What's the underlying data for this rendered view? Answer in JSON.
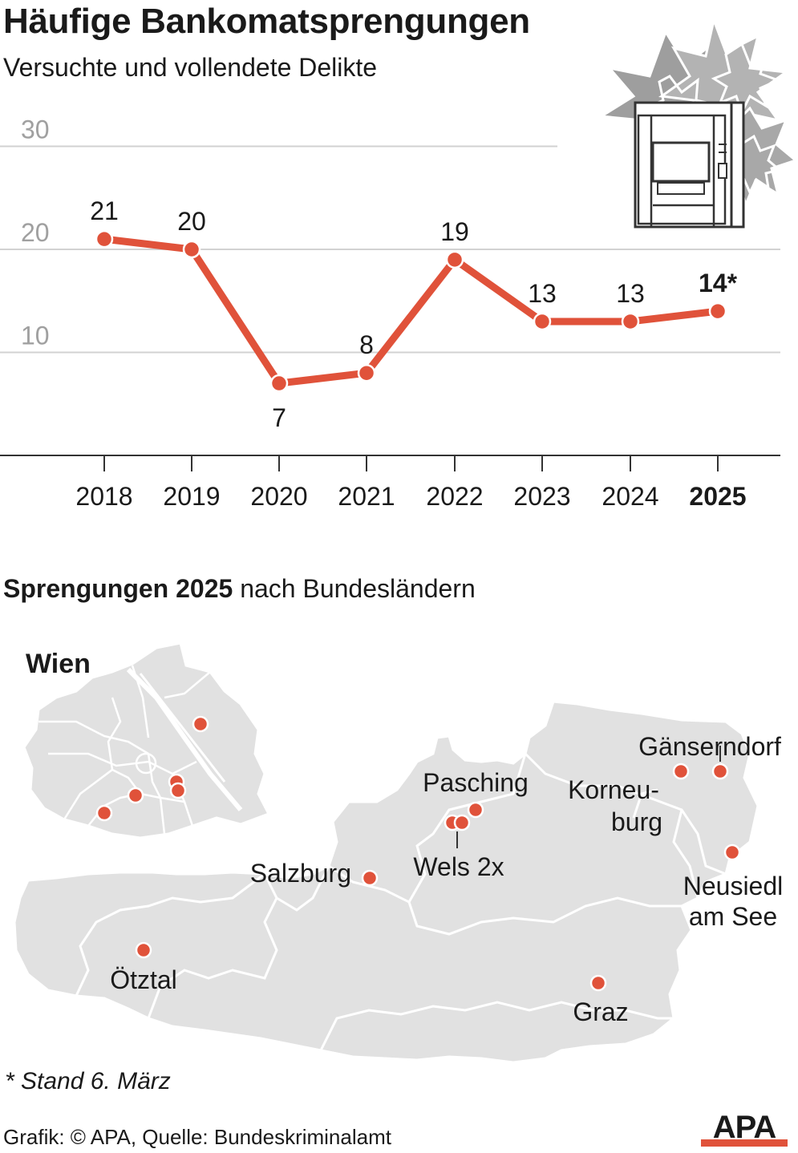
{
  "header": {
    "title": "Häufige Bankomatsprengungen",
    "subtitle": "Versuchte und vollendete Delikte"
  },
  "chart_data": {
    "type": "line",
    "x": [
      "2018",
      "2019",
      "2020",
      "2021",
      "2022",
      "2023",
      "2024",
      "2025"
    ],
    "y": [
      21,
      20,
      7,
      8,
      19,
      13,
      13,
      14
    ],
    "point_labels": [
      "21",
      "20",
      "7",
      "8",
      "19",
      "13",
      "13",
      "14*"
    ],
    "highlight_index": 7,
    "yticks": [
      "30",
      "20",
      "10"
    ],
    "ylim": [
      0,
      30
    ],
    "grid": true,
    "line_color": "#e0523a"
  },
  "map": {
    "heading_bold": "Sprengungen 2025",
    "heading_rest": " nach Bundesländern",
    "inset_title": "Wien",
    "marker_color": "#e0523a",
    "labels": [
      "Gänserndorf",
      "Korneu-",
      "burg",
      "Pasching",
      "Wels 2x",
      "Salzburg",
      "Neusiedl",
      "am See",
      "Ötztal",
      "Graz"
    ]
  },
  "footer": {
    "footnote": "* Stand 6. März",
    "credit": "Grafik: © APA, Quelle: Bundeskriminalamt",
    "logo_text": "APA"
  }
}
